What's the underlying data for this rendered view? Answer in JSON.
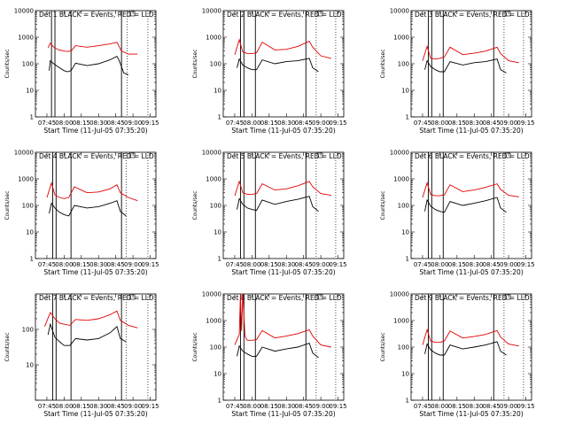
{
  "chart_data": [
    {
      "type": "line",
      "title": "Det 1    BLACK = Events,  RED = LLD",
      "xlabel": "Start Time (11-Jul-05 07:35:20)",
      "ylabel": "Counts/sec",
      "yscale": "log",
      "ylim": [
        1,
        10000
      ],
      "y_tick_labels": [
        "1",
        "10",
        "100",
        "1000",
        "10000"
      ],
      "x_tick_labels": [
        "07:45",
        "08:00",
        "08:15",
        "08:30",
        "08:45",
        "09:00",
        "09:15"
      ],
      "series": [
        {
          "color": "#000000",
          "x": [
            "07:47",
            "07:48",
            "07:51",
            "07:55",
            "08:00",
            "08:03",
            "08:06",
            "08:10",
            "08:20",
            "08:30",
            "08:40",
            "08:46",
            "08:48",
            "08:52",
            "08:56"
          ],
          "values": [
            55,
            130,
            100,
            75,
            55,
            50,
            55,
            105,
            85,
            100,
            140,
            190,
            130,
            45,
            38
          ]
        },
        {
          "color": "#e00000",
          "x": [
            "07:46",
            "07:48",
            "07:51",
            "07:55",
            "08:00",
            "08:03",
            "08:06",
            "08:10",
            "08:20",
            "08:30",
            "08:40",
            "08:46",
            "08:50",
            "08:56",
            "09:04"
          ],
          "values": [
            400,
            600,
            420,
            340,
            300,
            290,
            300,
            480,
            420,
            480,
            560,
            640,
            300,
            230,
            230
          ]
        }
      ],
      "vlines_solid": [
        "07:49",
        "07:52",
        "08:06",
        "08:50"
      ],
      "vlines_dotted": [
        "08:55",
        "09:13"
      ]
    },
    {
      "type": "line",
      "title": "Det 2    BLACK = Events,  RED = LLD",
      "xlabel": "Start Time (11-Jul-05 07:35:20)",
      "ylabel": "Counts/sec",
      "yscale": "log",
      "ylim": [
        1,
        10000
      ],
      "y_tick_labels": [
        "1",
        "10",
        "100",
        "1000",
        "10000"
      ],
      "x_tick_labels": [
        "07:45",
        "08:00",
        "08:15",
        "08:30",
        "08:45",
        "09:00",
        "09:15"
      ],
      "series": [
        {
          "color": "#000000",
          "x": [
            "07:47",
            "07:49",
            "07:52",
            "07:56",
            "08:00",
            "08:04",
            "08:09",
            "08:20",
            "08:30",
            "08:40",
            "08:50",
            "08:53",
            "08:58"
          ],
          "values": [
            70,
            150,
            90,
            70,
            60,
            60,
            140,
            100,
            120,
            130,
            160,
            70,
            50
          ]
        },
        {
          "color": "#e00000",
          "x": [
            "07:45",
            "07:49",
            "07:52",
            "07:56",
            "08:00",
            "08:04",
            "08:09",
            "08:20",
            "08:30",
            "08:40",
            "08:50",
            "08:53",
            "09:00",
            "09:09"
          ],
          "values": [
            220,
            800,
            280,
            240,
            240,
            260,
            650,
            330,
            350,
            450,
            700,
            420,
            200,
            160
          ]
        }
      ],
      "vlines_solid": [
        "07:50",
        "07:53",
        "08:03",
        "08:47"
      ],
      "vlines_dotted": [
        "08:56",
        "09:13"
      ]
    },
    {
      "type": "line",
      "title": "Det 3    BLACK = Events,  RED = LLD",
      "xlabel": "Start Time (11-Jul-05 07:35:20)",
      "ylabel": "Counts/sec",
      "yscale": "log",
      "ylim": [
        1,
        10000
      ],
      "y_tick_labels": [
        "1",
        "10",
        "100",
        "1000",
        "10000"
      ],
      "x_tick_labels": [
        "07:45",
        "08:00",
        "08:15",
        "08:30",
        "08:45",
        "09:00",
        "09:15"
      ],
      "series": [
        {
          "color": "#000000",
          "x": [
            "07:47",
            "07:49",
            "07:52",
            "07:56",
            "08:00",
            "08:04",
            "08:09",
            "08:20",
            "08:30",
            "08:40",
            "08:50",
            "08:53",
            "08:58"
          ],
          "values": [
            60,
            130,
            80,
            60,
            50,
            50,
            120,
            90,
            110,
            120,
            150,
            60,
            45
          ]
        },
        {
          "color": "#e00000",
          "x": [
            "07:45",
            "07:49",
            "07:52",
            "07:56",
            "08:00",
            "08:04",
            "08:09",
            "08:20",
            "08:30",
            "08:40",
            "08:50",
            "08:53",
            "09:00",
            "09:09"
          ],
          "values": [
            130,
            450,
            160,
            150,
            160,
            180,
            420,
            220,
            250,
            300,
            420,
            240,
            130,
            110
          ]
        }
      ],
      "vlines_solid": [
        "07:50",
        "07:53",
        "08:03",
        "08:47"
      ],
      "vlines_dotted": [
        "08:56",
        "09:13"
      ]
    },
    {
      "type": "line",
      "title": "Det 4    BLACK = Events,  RED = LLD",
      "xlabel": "Start Time (11-Jul-05 07:35:20)",
      "ylabel": "Counts/sec",
      "yscale": "log",
      "ylim": [
        1,
        10000
      ],
      "y_tick_labels": [
        "1",
        "10",
        "100",
        "1000",
        "10000"
      ],
      "x_tick_labels": [
        "07:45",
        "08:00",
        "08:15",
        "08:30",
        "08:45",
        "09:00",
        "09:15"
      ],
      "series": [
        {
          "color": "#000000",
          "x": [
            "07:47",
            "07:49",
            "07:52",
            "07:56",
            "08:00",
            "08:04",
            "08:09",
            "08:20",
            "08:30",
            "08:40",
            "08:46",
            "08:49",
            "08:54"
          ],
          "values": [
            50,
            120,
            80,
            55,
            45,
            40,
            100,
            80,
            90,
            120,
            150,
            60,
            40
          ]
        },
        {
          "color": "#e00000",
          "x": [
            "07:45",
            "07:49",
            "07:52",
            "07:56",
            "08:00",
            "08:04",
            "08:09",
            "08:20",
            "08:30",
            "08:40",
            "08:46",
            "08:49",
            "08:56",
            "09:04"
          ],
          "values": [
            200,
            700,
            250,
            200,
            180,
            200,
            500,
            300,
            320,
            420,
            600,
            300,
            200,
            150
          ]
        }
      ],
      "vlines_solid": [
        "07:50",
        "07:53",
        "08:06",
        "08:50"
      ],
      "vlines_dotted": [
        "08:54",
        "09:13"
      ]
    },
    {
      "type": "line",
      "title": "Det 5    BLACK = Events,  RED = LLD",
      "xlabel": "Start Time (11-Jul-05 07:35:20)",
      "ylabel": "Counts/sec",
      "yscale": "log",
      "ylim": [
        1,
        10000
      ],
      "y_tick_labels": [
        "1",
        "10",
        "100",
        "1000",
        "10000"
      ],
      "x_tick_labels": [
        "07:45",
        "08:00",
        "08:15",
        "08:30",
        "08:45",
        "09:00",
        "09:15"
      ],
      "series": [
        {
          "color": "#000000",
          "x": [
            "07:47",
            "07:49",
            "07:52",
            "07:56",
            "08:00",
            "08:04",
            "08:09",
            "08:20",
            "08:30",
            "08:40",
            "08:50",
            "08:53",
            "08:58"
          ],
          "values": [
            70,
            180,
            110,
            80,
            70,
            65,
            160,
            110,
            140,
            170,
            220,
            90,
            60
          ]
        },
        {
          "color": "#e00000",
          "x": [
            "07:45",
            "07:49",
            "07:52",
            "07:56",
            "08:00",
            "08:04",
            "08:09",
            "08:20",
            "08:30",
            "08:40",
            "08:50",
            "08:53",
            "09:00",
            "09:09"
          ],
          "values": [
            230,
            800,
            300,
            260,
            260,
            280,
            650,
            380,
            420,
            550,
            800,
            500,
            280,
            240
          ]
        }
      ],
      "vlines_solid": [
        "07:50",
        "07:53",
        "08:03",
        "08:47"
      ],
      "vlines_dotted": [
        "08:56",
        "09:13"
      ]
    },
    {
      "type": "line",
      "title": "Det 6    BLACK = Events,  RED = LLD",
      "xlabel": "Start Time (11-Jul-05 07:35:20)",
      "ylabel": "Counts/sec",
      "yscale": "log",
      "ylim": [
        1,
        10000
      ],
      "y_tick_labels": [
        "1",
        "10",
        "100",
        "1000",
        "10000"
      ],
      "x_tick_labels": [
        "07:45",
        "08:00",
        "08:15",
        "08:30",
        "08:45",
        "09:00",
        "09:15"
      ],
      "series": [
        {
          "color": "#000000",
          "x": [
            "07:47",
            "07:49",
            "07:52",
            "07:56",
            "08:00",
            "08:04",
            "08:09",
            "08:20",
            "08:30",
            "08:40",
            "08:50",
            "08:53",
            "08:58"
          ],
          "values": [
            60,
            160,
            95,
            70,
            60,
            55,
            140,
            100,
            120,
            150,
            200,
            80,
            55
          ]
        },
        {
          "color": "#e00000",
          "x": [
            "07:45",
            "07:49",
            "07:52",
            "07:56",
            "08:00",
            "08:04",
            "08:09",
            "08:20",
            "08:30",
            "08:40",
            "08:50",
            "08:53",
            "09:00",
            "09:09"
          ],
          "values": [
            200,
            700,
            260,
            230,
            230,
            250,
            600,
            330,
            380,
            480,
            650,
            400,
            240,
            210
          ]
        }
      ],
      "vlines_solid": [
        "07:50",
        "07:53",
        "08:03",
        "08:47"
      ],
      "vlines_dotted": [
        "08:56",
        "09:13"
      ]
    },
    {
      "type": "line",
      "title": "Det 7    BLACK = Events,  RED = LLD",
      "xlabel": "Start Time (11-Jul-05 07:35:20)",
      "ylabel": "Counts/sec",
      "yscale": "log",
      "ylim": [
        1,
        1000
      ],
      "y_tick_labels": [
        "10",
        "100"
      ],
      "x_tick_labels": [
        "07:45",
        "08:00",
        "08:15",
        "08:30",
        "08:45",
        "09:00",
        "09:15"
      ],
      "series": [
        {
          "color": "#000000",
          "x": [
            "07:46",
            "07:48",
            "07:52",
            "07:56",
            "08:00",
            "08:05",
            "08:10",
            "08:20",
            "08:30",
            "08:40",
            "08:46",
            "08:49",
            "08:54"
          ],
          "values": [
            70,
            140,
            60,
            45,
            35,
            35,
            55,
            50,
            55,
            80,
            120,
            55,
            45
          ]
        },
        {
          "color": "#e00000",
          "x": [
            "07:43",
            "07:48",
            "07:52",
            "07:56",
            "08:00",
            "08:05",
            "08:10",
            "08:20",
            "08:30",
            "08:40",
            "08:46",
            "08:49",
            "08:56",
            "09:04"
          ],
          "values": [
            120,
            300,
            200,
            150,
            140,
            130,
            190,
            180,
            200,
            260,
            330,
            180,
            130,
            110
          ]
        }
      ],
      "vlines_solid": [
        "07:50",
        "07:53",
        "08:06",
        "08:50"
      ],
      "vlines_dotted": [
        "08:54",
        "09:13"
      ]
    },
    {
      "type": "line",
      "title": "Det 8    BLACK = Events,  RED = LLD",
      "xlabel": "Start Time (11-Jul-05 07:35:20)",
      "ylabel": "Counts/sec",
      "yscale": "log",
      "ylim": [
        1,
        10000
      ],
      "y_tick_labels": [
        "1",
        "10",
        "100",
        "1000",
        "10000"
      ],
      "x_tick_labels": [
        "07:45",
        "08:00",
        "08:15",
        "08:30",
        "08:45",
        "09:00",
        "09:15"
      ],
      "series": [
        {
          "color": "#000000",
          "x": [
            "07:47",
            "07:49",
            "07:52",
            "07:56",
            "08:00",
            "08:04",
            "08:09",
            "08:20",
            "08:30",
            "08:40",
            "08:50",
            "08:53",
            "08:58"
          ],
          "values": [
            45,
            110,
            70,
            55,
            45,
            45,
            100,
            70,
            85,
            100,
            140,
            60,
            40
          ]
        },
        {
          "color": "#e00000",
          "x": [
            "07:45",
            "07:49",
            "07:50",
            "07:51",
            "07:52",
            "07:54",
            "07:56",
            "08:00",
            "08:04",
            "08:09",
            "08:20",
            "08:30",
            "08:40",
            "08:50",
            "08:53",
            "09:00",
            "09:09"
          ],
          "values": [
            120,
            300,
            10000,
            400,
            10000,
            250,
            180,
            180,
            190,
            420,
            220,
            260,
            320,
            450,
            260,
            120,
            100
          ]
        }
      ],
      "vlines_solid": [
        "07:50",
        "07:53",
        "08:03",
        "08:47"
      ],
      "vlines_dotted": [
        "08:56",
        "09:13"
      ]
    },
    {
      "type": "line",
      "title": "Det 9    BLACK = Events,  RED = LLD",
      "xlabel": "Start Time (11-Jul-05 07:35:20)",
      "ylabel": "Counts/sec",
      "yscale": "log",
      "ylim": [
        1,
        10000
      ],
      "y_tick_labels": [
        "1",
        "10",
        "100",
        "1000",
        "10000"
      ],
      "x_tick_labels": [
        "07:45",
        "08:00",
        "08:15",
        "08:30",
        "08:45",
        "09:00",
        "09:15"
      ],
      "series": [
        {
          "color": "#000000",
          "x": [
            "07:47",
            "07:49",
            "07:52",
            "07:56",
            "08:00",
            "08:04",
            "08:09",
            "08:20",
            "08:30",
            "08:40",
            "08:50",
            "08:53",
            "08:58"
          ],
          "values": [
            55,
            130,
            80,
            60,
            50,
            50,
            120,
            85,
            100,
            120,
            160,
            70,
            50
          ]
        },
        {
          "color": "#e00000",
          "x": [
            "07:45",
            "07:49",
            "07:52",
            "07:56",
            "08:00",
            "08:04",
            "08:09",
            "08:20",
            "08:30",
            "08:40",
            "08:50",
            "08:53",
            "09:00",
            "09:09"
          ],
          "values": [
            120,
            450,
            170,
            150,
            150,
            170,
            400,
            220,
            250,
            300,
            420,
            240,
            130,
            110
          ]
        }
      ],
      "vlines_solid": [
        "07:50",
        "07:53",
        "08:03",
        "08:47"
      ],
      "vlines_dotted": [
        "08:56",
        "09:13"
      ]
    }
  ]
}
